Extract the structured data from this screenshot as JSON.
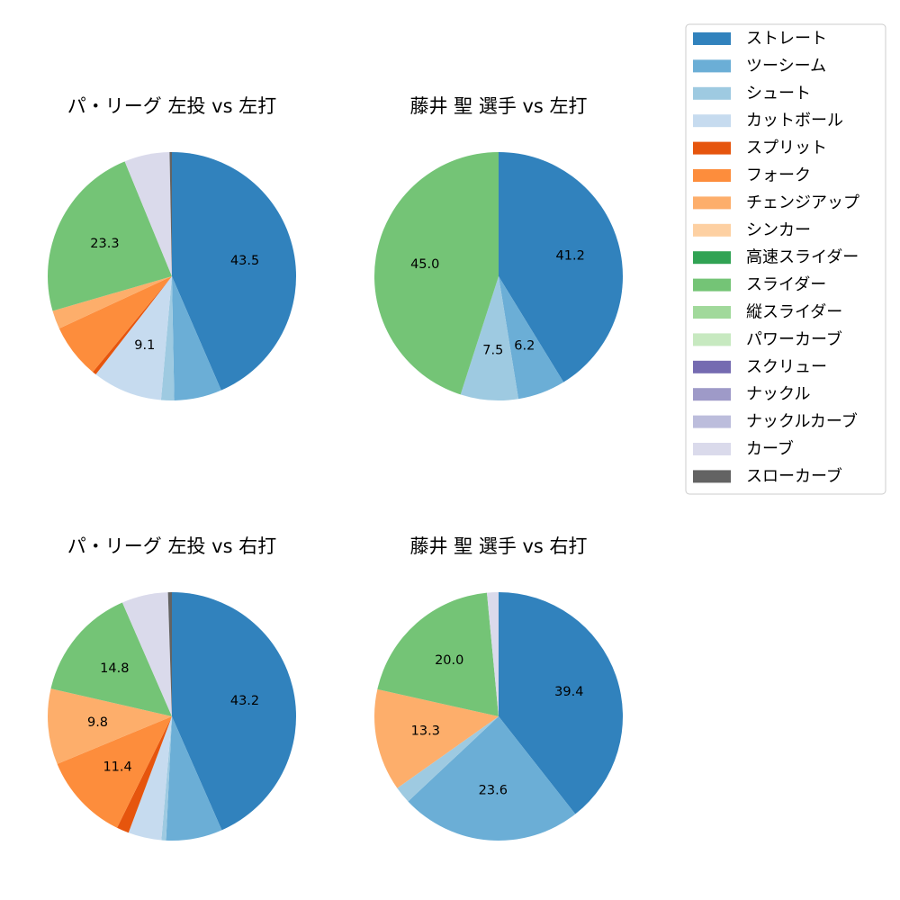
{
  "pitch_types": [
    {
      "name": "ストレート",
      "color": "#3182bd"
    },
    {
      "name": "ツーシーム",
      "color": "#6baed6"
    },
    {
      "name": "シュート",
      "color": "#9ecae1"
    },
    {
      "name": "カットボール",
      "color": "#c6dbef"
    },
    {
      "name": "スプリット",
      "color": "#e6550d"
    },
    {
      "name": "フォーク",
      "color": "#fd8d3c"
    },
    {
      "name": "チェンジアップ",
      "color": "#fdae6b"
    },
    {
      "name": "シンカー",
      "color": "#fdd0a2"
    },
    {
      "name": "高速スライダー",
      "color": "#31a354"
    },
    {
      "name": "スライダー",
      "color": "#74c476"
    },
    {
      "name": "縦スライダー",
      "color": "#a1d99b"
    },
    {
      "name": "パワーカーブ",
      "color": "#c7e9c0"
    },
    {
      "name": "スクリュー",
      "color": "#756bb1"
    },
    {
      "name": "ナックル",
      "color": "#9e9ac8"
    },
    {
      "name": "ナックルカーブ",
      "color": "#bcbddc"
    },
    {
      "name": "カーブ",
      "color": "#dadaeb"
    },
    {
      "name": "スローカーブ",
      "color": "#636363"
    }
  ],
  "chart_data": [
    {
      "type": "pie",
      "title": "パ・リーグ 左投 vs 左打",
      "slices": [
        {
          "name": "ストレート",
          "value": 43.5,
          "label": "43.5"
        },
        {
          "name": "ツーシーム",
          "value": 6.2,
          "label": ""
        },
        {
          "name": "シュート",
          "value": 1.7,
          "label": ""
        },
        {
          "name": "カットボール",
          "value": 9.1,
          "label": "9.1"
        },
        {
          "name": "スプリット",
          "value": 0.5,
          "label": ""
        },
        {
          "name": "フォーク",
          "value": 7.1,
          "label": ""
        },
        {
          "name": "チェンジアップ",
          "value": 2.4,
          "label": ""
        },
        {
          "name": "スライダー",
          "value": 23.3,
          "label": "23.3"
        },
        {
          "name": "カーブ",
          "value": 5.9,
          "label": ""
        },
        {
          "name": "スローカーブ",
          "value": 0.3,
          "label": ""
        }
      ]
    },
    {
      "type": "pie",
      "title": "藤井 聖 選手 vs 左打",
      "slices": [
        {
          "name": "ストレート",
          "value": 41.2,
          "label": "41.2"
        },
        {
          "name": "ツーシーム",
          "value": 6.2,
          "label": "6.2"
        },
        {
          "name": "シュート",
          "value": 7.5,
          "label": "7.5"
        },
        {
          "name": "スライダー",
          "value": 45.0,
          "label": "45.0"
        }
      ]
    },
    {
      "type": "pie",
      "title": "パ・リーグ 左投 vs 右打",
      "slices": [
        {
          "name": "ストレート",
          "value": 43.2,
          "label": "43.2"
        },
        {
          "name": "ツーシーム",
          "value": 7.3,
          "label": ""
        },
        {
          "name": "シュート",
          "value": 0.6,
          "label": ""
        },
        {
          "name": "カットボール",
          "value": 4.3,
          "label": ""
        },
        {
          "name": "スプリット",
          "value": 1.6,
          "label": ""
        },
        {
          "name": "フォーク",
          "value": 11.4,
          "label": "11.4"
        },
        {
          "name": "チェンジアップ",
          "value": 9.8,
          "label": "9.8"
        },
        {
          "name": "スライダー",
          "value": 14.8,
          "label": "14.8"
        },
        {
          "name": "カーブ",
          "value": 6.0,
          "label": ""
        },
        {
          "name": "スローカーブ",
          "value": 0.5,
          "label": ""
        }
      ]
    },
    {
      "type": "pie",
      "title": "藤井 聖 選手 vs 右打",
      "slices": [
        {
          "name": "ストレート",
          "value": 39.4,
          "label": "39.4"
        },
        {
          "name": "ツーシーム",
          "value": 23.6,
          "label": "23.6"
        },
        {
          "name": "シュート",
          "value": 2.2,
          "label": ""
        },
        {
          "name": "チェンジアップ",
          "value": 13.3,
          "label": "13.3"
        },
        {
          "name": "スライダー",
          "value": 20.0,
          "label": "20.0"
        },
        {
          "name": "カーブ",
          "value": 1.5,
          "label": ""
        }
      ]
    }
  ]
}
